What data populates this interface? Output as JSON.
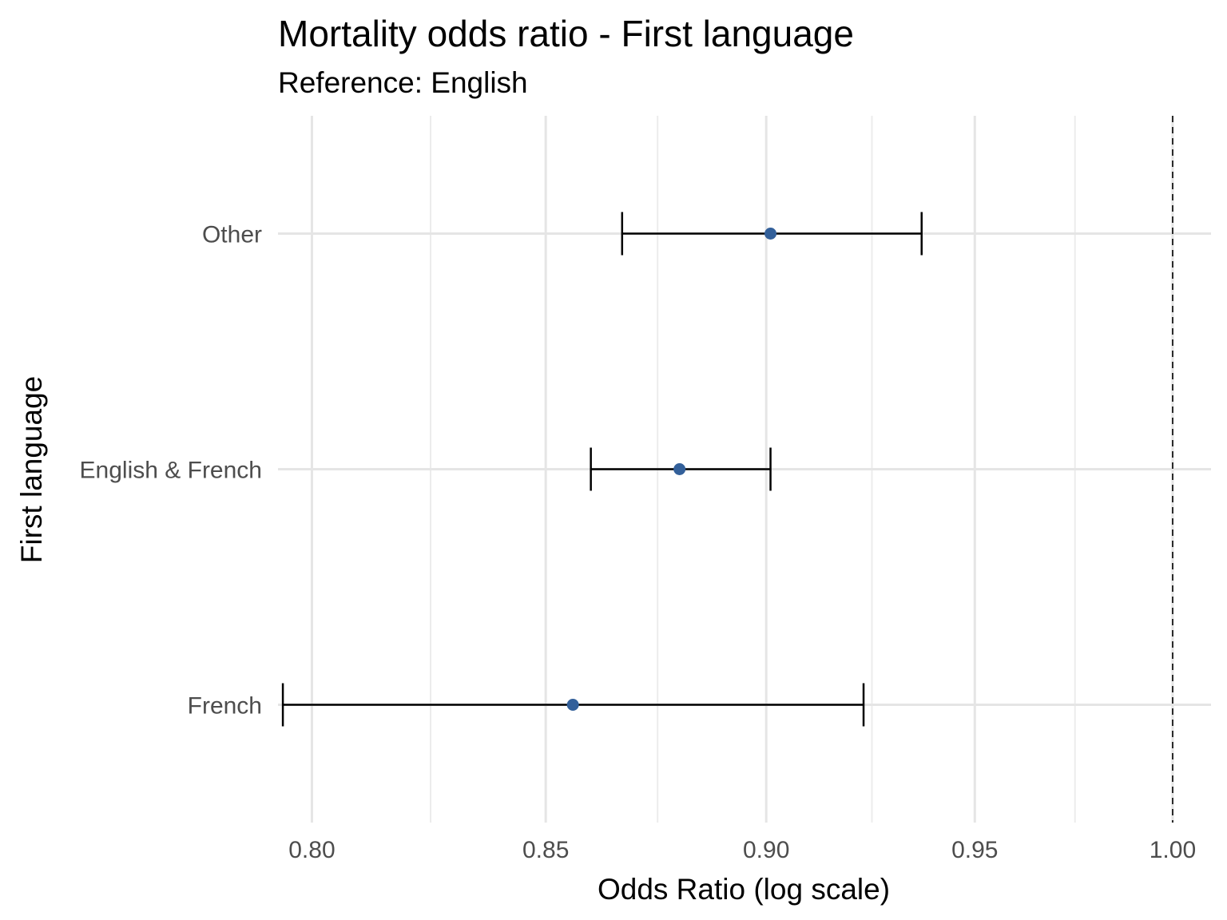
{
  "chart_data": {
    "type": "scatter",
    "title": "Mortality odds ratio - First language",
    "subtitle": "Reference: English",
    "xlabel": "Odds Ratio (log scale)",
    "ylabel": "First language",
    "x_scale": "log",
    "xlim": [
      0.793,
      1.01
    ],
    "x_ticks": [
      0.8,
      0.85,
      0.9,
      0.95,
      1.0
    ],
    "x_tick_labels": [
      "0.80",
      "0.85",
      "0.90",
      "0.95",
      "1.00"
    ],
    "categories": [
      "Other",
      "English & French",
      "French"
    ],
    "points": [
      {
        "label": "Other",
        "estimate": 0.901,
        "lower": 0.867,
        "upper": 0.937
      },
      {
        "label": "English & French",
        "estimate": 0.88,
        "lower": 0.86,
        "upper": 0.901
      },
      {
        "label": "French",
        "estimate": 0.856,
        "lower": 0.794,
        "upper": 0.923
      }
    ],
    "reference_line": 1.0,
    "point_color": "#33609a",
    "grid": true,
    "legend": "none"
  }
}
